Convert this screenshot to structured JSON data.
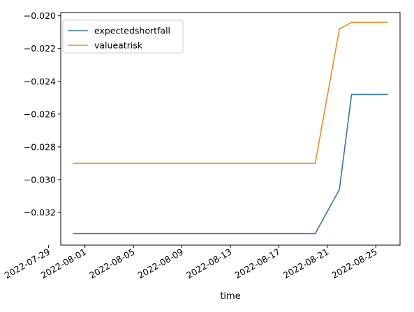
{
  "chart_data": {
    "type": "line",
    "title": "",
    "xlabel": "time",
    "ylabel": "",
    "x": [
      "2022-07-31",
      "2022-08-20",
      "2022-08-22",
      "2022-08-23",
      "2022-08-24",
      "2022-08-26"
    ],
    "series": [
      {
        "name": "expectedshortfall",
        "color": "#3d72a8",
        "values": [
          -0.0333,
          -0.0333,
          -0.0306,
          -0.0248,
          -0.0248,
          -0.0248
        ]
      },
      {
        "name": "valueatrisk",
        "color": "#ee8a2a",
        "values": [
          -0.029,
          -0.029,
          -0.0208,
          -0.0204,
          -0.0204,
          -0.0204
        ]
      }
    ],
    "xlim": [
      "2022-07-30",
      "2022-08-27"
    ],
    "ylim": [
      -0.034,
      -0.0198
    ],
    "x_ticks": [
      "2022-07-29",
      "2022-08-01",
      "2022-08-05",
      "2022-08-09",
      "2022-08-13",
      "2022-08-17",
      "2022-08-21",
      "2022-08-25"
    ],
    "y_ticks": [
      -0.032,
      -0.03,
      -0.028,
      -0.026,
      -0.024,
      -0.022,
      -0.02
    ],
    "y_tick_labels": [
      "−0.032",
      "−0.030",
      "−0.028",
      "−0.026",
      "−0.024",
      "−0.022",
      "−0.020"
    ],
    "grid": false,
    "legend_position": "top-left"
  }
}
